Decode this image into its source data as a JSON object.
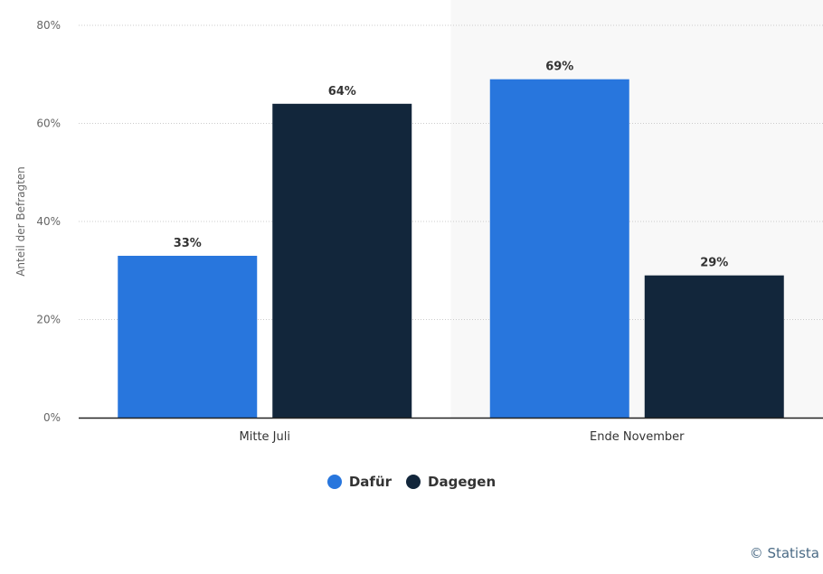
{
  "colors": {
    "series0": "#2876dd",
    "series1": "#12263b",
    "highlight_band": "#f8f8f8",
    "grid": "#cccccc",
    "axis": "#222222"
  },
  "chart_data": {
    "type": "bar",
    "categories": [
      "Mitte Juli",
      "Ende November"
    ],
    "series": [
      {
        "name": "Dafür",
        "values": [
          33,
          69
        ],
        "labels": [
          "33%",
          "69%"
        ]
      },
      {
        "name": "Dagegen",
        "values": [
          64,
          29
        ],
        "labels": [
          "64%",
          "29%"
        ]
      }
    ],
    "ylabel": "Anteil der Befragten",
    "yticks": [
      "0%",
      "20%",
      "40%",
      "60%",
      "80%"
    ],
    "ytick_values": [
      0,
      20,
      40,
      60,
      80
    ],
    "ylim": [
      0,
      80
    ],
    "grid": true,
    "legend_position": "bottom-center",
    "highlighted_category": "Ende November"
  },
  "legend": {
    "items": [
      "Dafür",
      "Dagegen"
    ]
  },
  "credit": "© Statista"
}
